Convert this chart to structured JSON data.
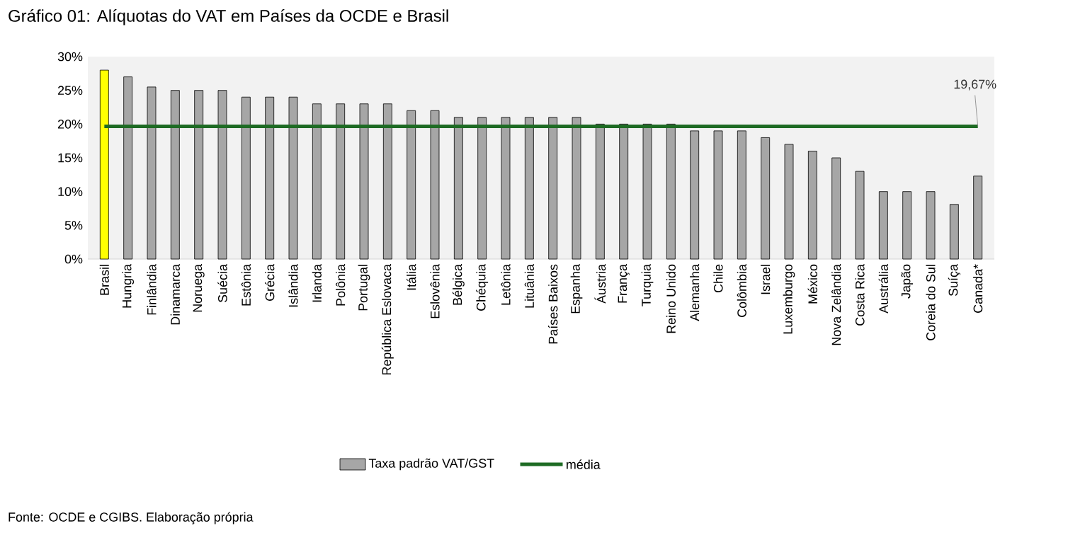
{
  "chart_data": {
    "type": "bar",
    "title": "Gráfico 01: Alíquotas do VAT em Países da OCDE e Brasil",
    "categories": [
      "Brasil",
      "Hungria",
      "Finlândia",
      "Dinamarca",
      "Noruega",
      "Suécia",
      "Estônia",
      "Grécia",
      "Islândia",
      "Irlanda",
      "Polônia",
      "Portugal",
      "República Eslovaca",
      "Itália",
      "Eslovênia",
      "Bélgica",
      "Chéquia",
      "Letônia",
      "Lituânia",
      "Países Baixos",
      "Espanha",
      "Áustria",
      "França",
      "Turquia",
      "Reino Unido",
      "Alemanha",
      "Chile",
      "Colômbia",
      "Israel",
      "Luxemburgo",
      "México",
      "Nova Zelândia",
      "Costa Rica",
      "Austrália",
      "Japão",
      "Coreia do Sul",
      "Suíça",
      "Canada*"
    ],
    "series": [
      {
        "name": "Taxa padrão VAT/GST",
        "colors": [
          "#ffff00",
          "#a6a6a6",
          "#a6a6a6",
          "#a6a6a6",
          "#a6a6a6",
          "#a6a6a6",
          "#a6a6a6",
          "#a6a6a6",
          "#a6a6a6",
          "#a6a6a6",
          "#a6a6a6",
          "#a6a6a6",
          "#a6a6a6",
          "#a6a6a6",
          "#a6a6a6",
          "#a6a6a6",
          "#a6a6a6",
          "#a6a6a6",
          "#a6a6a6",
          "#a6a6a6",
          "#a6a6a6",
          "#a6a6a6",
          "#a6a6a6",
          "#a6a6a6",
          "#a6a6a6",
          "#a6a6a6",
          "#a6a6a6",
          "#a6a6a6",
          "#a6a6a6",
          "#a6a6a6",
          "#a6a6a6",
          "#a6a6a6",
          "#a6a6a6",
          "#a6a6a6",
          "#a6a6a6",
          "#a6a6a6",
          "#a6a6a6",
          "#a6a6a6"
        ],
        "values": [
          28,
          27,
          25.5,
          25,
          25,
          25,
          24,
          24,
          24,
          23,
          23,
          23,
          23,
          22,
          22,
          21,
          21,
          21,
          21,
          21,
          21,
          20,
          20,
          20,
          20,
          19,
          19,
          19,
          18,
          17,
          16,
          15,
          13,
          10,
          10,
          10,
          8.1,
          12.3
        ]
      },
      {
        "name": "média",
        "type": "line",
        "color": "#1e6b24",
        "values": [
          19.67,
          19.67,
          19.67,
          19.67,
          19.67,
          19.67,
          19.67,
          19.67,
          19.67,
          19.67,
          19.67,
          19.67,
          19.67,
          19.67,
          19.67,
          19.67,
          19.67,
          19.67,
          19.67,
          19.67,
          19.67,
          19.67,
          19.67,
          19.67,
          19.67,
          19.67,
          19.67,
          19.67,
          19.67,
          19.67,
          19.67,
          19.67,
          19.67,
          19.67,
          19.67,
          19.67,
          19.67,
          19.67
        ]
      }
    ],
    "ylim": [
      0,
      30
    ],
    "yticks": [
      {
        "value": 0,
        "label": "0%"
      },
      {
        "value": 5,
        "label": "5%"
      },
      {
        "value": 10,
        "label": "10%"
      },
      {
        "value": 15,
        "label": "15%"
      },
      {
        "value": 20,
        "label": "20%"
      },
      {
        "value": 25,
        "label": "25%"
      },
      {
        "value": 30,
        "label": "30%"
      }
    ],
    "legend": "bottom",
    "annotations": [
      {
        "text": "19,67%",
        "x": "Canada*",
        "y": 19.67
      },
      "Fonte: OCDE e CGIBS. Elaboração própria"
    ]
  }
}
